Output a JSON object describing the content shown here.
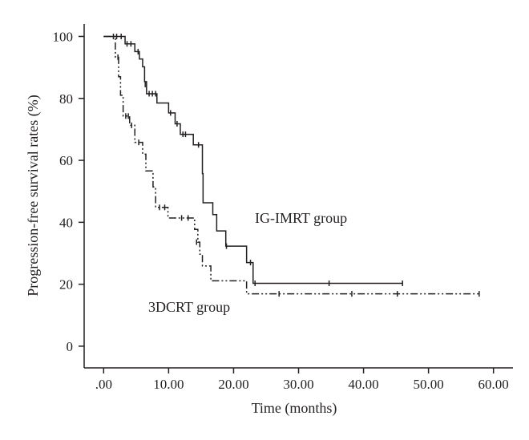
{
  "chart_data": {
    "type": "line",
    "step": true,
    "title": "",
    "xlabel": "Time (months)",
    "ylabel": "Progression-free survival rates (%)",
    "xlim": [
      -3,
      63
    ],
    "ylim": [
      -7,
      104
    ],
    "xticks": [
      0,
      10,
      20,
      30,
      40,
      50,
      60
    ],
    "xtick_labels": [
      ".00",
      "10.00",
      "20.00",
      "30.00",
      "40.00",
      "50.00",
      "60.00"
    ],
    "yticks": [
      0,
      20,
      40,
      60,
      80,
      100
    ],
    "ytick_labels": [
      "0",
      "20",
      "40",
      "60",
      "80",
      "100"
    ],
    "grid": false,
    "legend": "none",
    "annotations": [
      {
        "text": "IG-IMRT group",
        "x": 24.5,
        "y": 42.5
      },
      {
        "text": "3DCRT group",
        "x": 6.5,
        "y": 12
      }
    ],
    "series": [
      {
        "name": "IG-IMRT group",
        "line_style": "solid",
        "color": "#231f20",
        "steps": [
          [
            0,
            100
          ],
          [
            3.3,
            97.6
          ],
          [
            4.8,
            95.1
          ],
          [
            5.5,
            92.7
          ],
          [
            6,
            90.2
          ],
          [
            6.3,
            85.4
          ],
          [
            6.6,
            81.5
          ],
          [
            8.2,
            78.5
          ],
          [
            10,
            75.3
          ],
          [
            11,
            71.8
          ],
          [
            11.8,
            68.4
          ],
          [
            13.8,
            65
          ],
          [
            15.2,
            55.7
          ],
          [
            15.3,
            46.3
          ],
          [
            16.8,
            42.5
          ],
          [
            17.4,
            37.2
          ],
          [
            18.8,
            32.3
          ],
          [
            22,
            27
          ],
          [
            23,
            20.3
          ],
          [
            46,
            20.3
          ]
        ],
        "censored": [
          [
            2,
            100
          ],
          [
            2.7,
            100
          ],
          [
            3.6,
            97.6
          ],
          [
            4.2,
            97.6
          ],
          [
            5.3,
            95.1
          ],
          [
            6.4,
            84.5
          ],
          [
            7,
            81.5
          ],
          [
            7.5,
            81.5
          ],
          [
            8,
            81.5
          ],
          [
            10.3,
            75.3
          ],
          [
            11.3,
            71.8
          ],
          [
            12.2,
            68.4
          ],
          [
            12.6,
            68.4
          ],
          [
            14.6,
            65
          ],
          [
            18.9,
            32.3
          ],
          [
            22.6,
            27
          ],
          [
            23.3,
            20.3
          ],
          [
            34.7,
            20.3
          ],
          [
            46,
            20.3
          ]
        ]
      },
      {
        "name": "3DCRT group",
        "line_style": "dash-dot-dot",
        "color": "#231f20",
        "steps": [
          [
            0,
            100
          ],
          [
            1.8,
            93.3
          ],
          [
            2.3,
            87
          ],
          [
            2.6,
            81
          ],
          [
            3,
            74.3
          ],
          [
            4,
            71.3
          ],
          [
            4.8,
            65.8
          ],
          [
            6,
            62
          ],
          [
            6.5,
            56.6
          ],
          [
            7.6,
            51.4
          ],
          [
            8,
            44.8
          ],
          [
            9.9,
            41.4
          ],
          [
            14,
            37.7
          ],
          [
            14.5,
            33.6
          ],
          [
            14.8,
            29.7
          ],
          [
            15.2,
            25.9
          ],
          [
            16.5,
            21.1
          ],
          [
            22,
            16.9
          ],
          [
            58,
            16.9
          ]
        ],
        "censored": [
          [
            1.5,
            100
          ],
          [
            2.2,
            93.3
          ],
          [
            3.4,
            74.3
          ],
          [
            3.8,
            74.3
          ],
          [
            4.3,
            71.3
          ],
          [
            5.4,
            65.8
          ],
          [
            8.6,
            44.8
          ],
          [
            9.4,
            44.8
          ],
          [
            12,
            41.4
          ],
          [
            13,
            41.4
          ],
          [
            14.3,
            33.6
          ],
          [
            27,
            16.9
          ],
          [
            38.2,
            16.9
          ],
          [
            45.2,
            16.9
          ],
          [
            57.8,
            16.9
          ]
        ]
      }
    ]
  }
}
